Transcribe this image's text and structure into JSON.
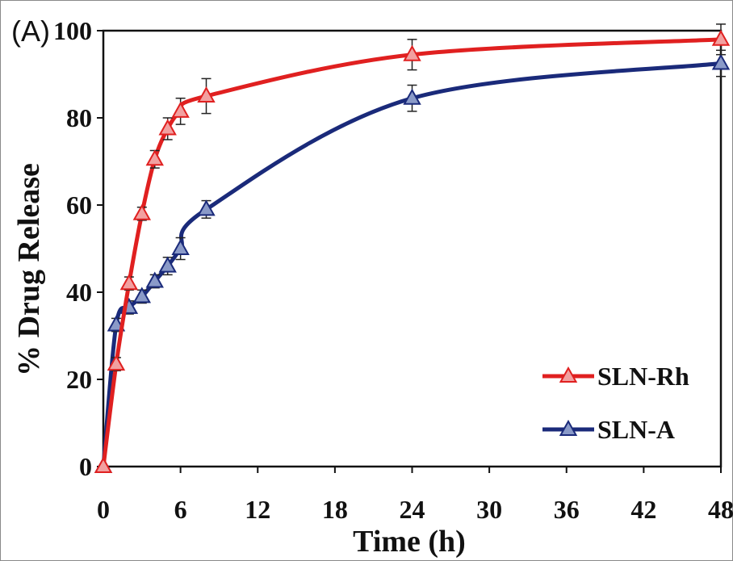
{
  "panel_label": "(A)",
  "chart_data": {
    "type": "line",
    "xlabel": "Time (h)",
    "ylabel": "% Drug Release",
    "xlim": [
      0,
      48
    ],
    "ylim": [
      0,
      100
    ],
    "xticks": [
      0,
      6,
      12,
      18,
      24,
      30,
      36,
      42,
      48
    ],
    "yticks": [
      0,
      20,
      40,
      60,
      80,
      100
    ],
    "grid": false,
    "legend_position": "bottom-right",
    "series": [
      {
        "name": "SLN-Rh",
        "color": "#e02020",
        "marker_fill": "#f2a0a0",
        "x": [
          0,
          1,
          2,
          3,
          4,
          5,
          6,
          8,
          24,
          48
        ],
        "y": [
          0,
          23.5,
          42,
          58,
          70.5,
          77.5,
          81.5,
          85,
          94.5,
          98
        ],
        "error": [
          0,
          1.5,
          1.5,
          1.5,
          2,
          2.5,
          3,
          4,
          3.5,
          3.5
        ]
      },
      {
        "name": "SLN-A",
        "color": "#1a2a7a",
        "marker_fill": "#8a9ac8",
        "x": [
          0,
          1,
          2,
          3,
          4,
          5,
          6,
          8,
          24,
          48
        ],
        "y": [
          0,
          32.5,
          36.5,
          39,
          42.5,
          46,
          50,
          59,
          84.5,
          92.5
        ],
        "error": [
          0,
          1.5,
          1.5,
          1.5,
          1.5,
          2,
          2.5,
          2,
          3,
          3
        ]
      }
    ]
  }
}
